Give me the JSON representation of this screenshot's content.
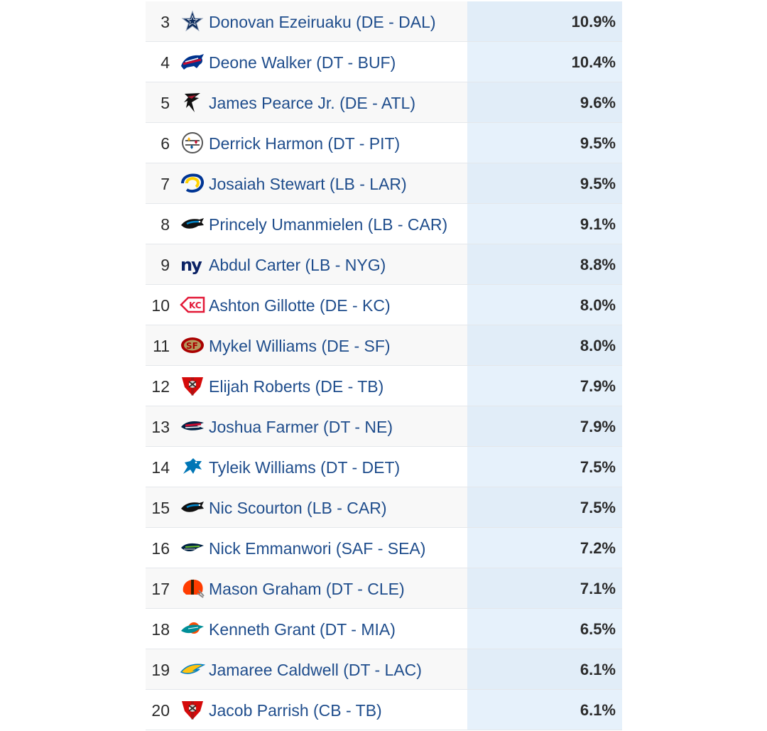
{
  "rows": [
    {
      "rank": "3",
      "player": "Donovan Ezeiruaku (DE - DAL)",
      "pct": "10.9%",
      "team": "DAL",
      "logo_icon": "cowboys-star-icon"
    },
    {
      "rank": "4",
      "player": "Deone Walker (DT - BUF)",
      "pct": "10.4%",
      "team": "BUF",
      "logo_icon": "bills-buffalo-icon"
    },
    {
      "rank": "5",
      "player": "James Pearce Jr. (DE - ATL)",
      "pct": "9.6%",
      "team": "ATL",
      "logo_icon": "falcons-falcon-icon"
    },
    {
      "rank": "6",
      "player": "Derrick Harmon (DT - PIT)",
      "pct": "9.5%",
      "team": "PIT",
      "logo_icon": "steelers-logo-icon"
    },
    {
      "rank": "7",
      "player": "Josaiah Stewart (LB - LAR)",
      "pct": "9.5%",
      "team": "LAR",
      "logo_icon": "rams-horn-icon"
    },
    {
      "rank": "8",
      "player": "Princely Umanmielen (LB - CAR)",
      "pct": "9.1%",
      "team": "CAR",
      "logo_icon": "panthers-panther-icon"
    },
    {
      "rank": "9",
      "player": "Abdul Carter (LB - NYG)",
      "pct": "8.8%",
      "team": "NYG",
      "logo_icon": "giants-ny-icon"
    },
    {
      "rank": "10",
      "player": "Ashton Gillotte (DE - KC)",
      "pct": "8.0%",
      "team": "KC",
      "logo_icon": "chiefs-arrowhead-icon"
    },
    {
      "rank": "11",
      "player": "Mykel Williams (DE - SF)",
      "pct": "8.0%",
      "team": "SF",
      "logo_icon": "49ers-oval-icon"
    },
    {
      "rank": "12",
      "player": "Elijah Roberts (DE - TB)",
      "pct": "7.9%",
      "team": "TB",
      "logo_icon": "buccaneers-flag-icon"
    },
    {
      "rank": "13",
      "player": "Joshua Farmer (DT - NE)",
      "pct": "7.9%",
      "team": "NE",
      "logo_icon": "patriots-flying-elvis-icon"
    },
    {
      "rank": "14",
      "player": "Tyleik Williams (DT - DET)",
      "pct": "7.5%",
      "team": "DET",
      "logo_icon": "lions-lion-icon"
    },
    {
      "rank": "15",
      "player": "Nic Scourton (LB - CAR)",
      "pct": "7.5%",
      "team": "CAR",
      "logo_icon": "panthers-panther-icon"
    },
    {
      "rank": "16",
      "player": "Nick Emmanwori (SAF - SEA)",
      "pct": "7.2%",
      "team": "SEA",
      "logo_icon": "seahawks-hawk-icon"
    },
    {
      "rank": "17",
      "player": "Mason Graham (DT - CLE)",
      "pct": "7.1%",
      "team": "CLE",
      "logo_icon": "browns-helmet-icon"
    },
    {
      "rank": "18",
      "player": "Kenneth Grant (DT - MIA)",
      "pct": "6.5%",
      "team": "MIA",
      "logo_icon": "dolphins-dolphin-icon"
    },
    {
      "rank": "19",
      "player": "Jamaree Caldwell (DT - LAC)",
      "pct": "6.1%",
      "team": "LAC",
      "logo_icon": "chargers-bolt-icon"
    },
    {
      "rank": "20",
      "player": "Jacob Parrish (CB - TB)",
      "pct": "6.1%",
      "team": "TB",
      "logo_icon": "buccaneers-flag-icon"
    }
  ],
  "colors": {
    "link": "#1f4d8c",
    "highlight_column": "#e6f1fb",
    "row_stripe": "#f8f8f8"
  }
}
